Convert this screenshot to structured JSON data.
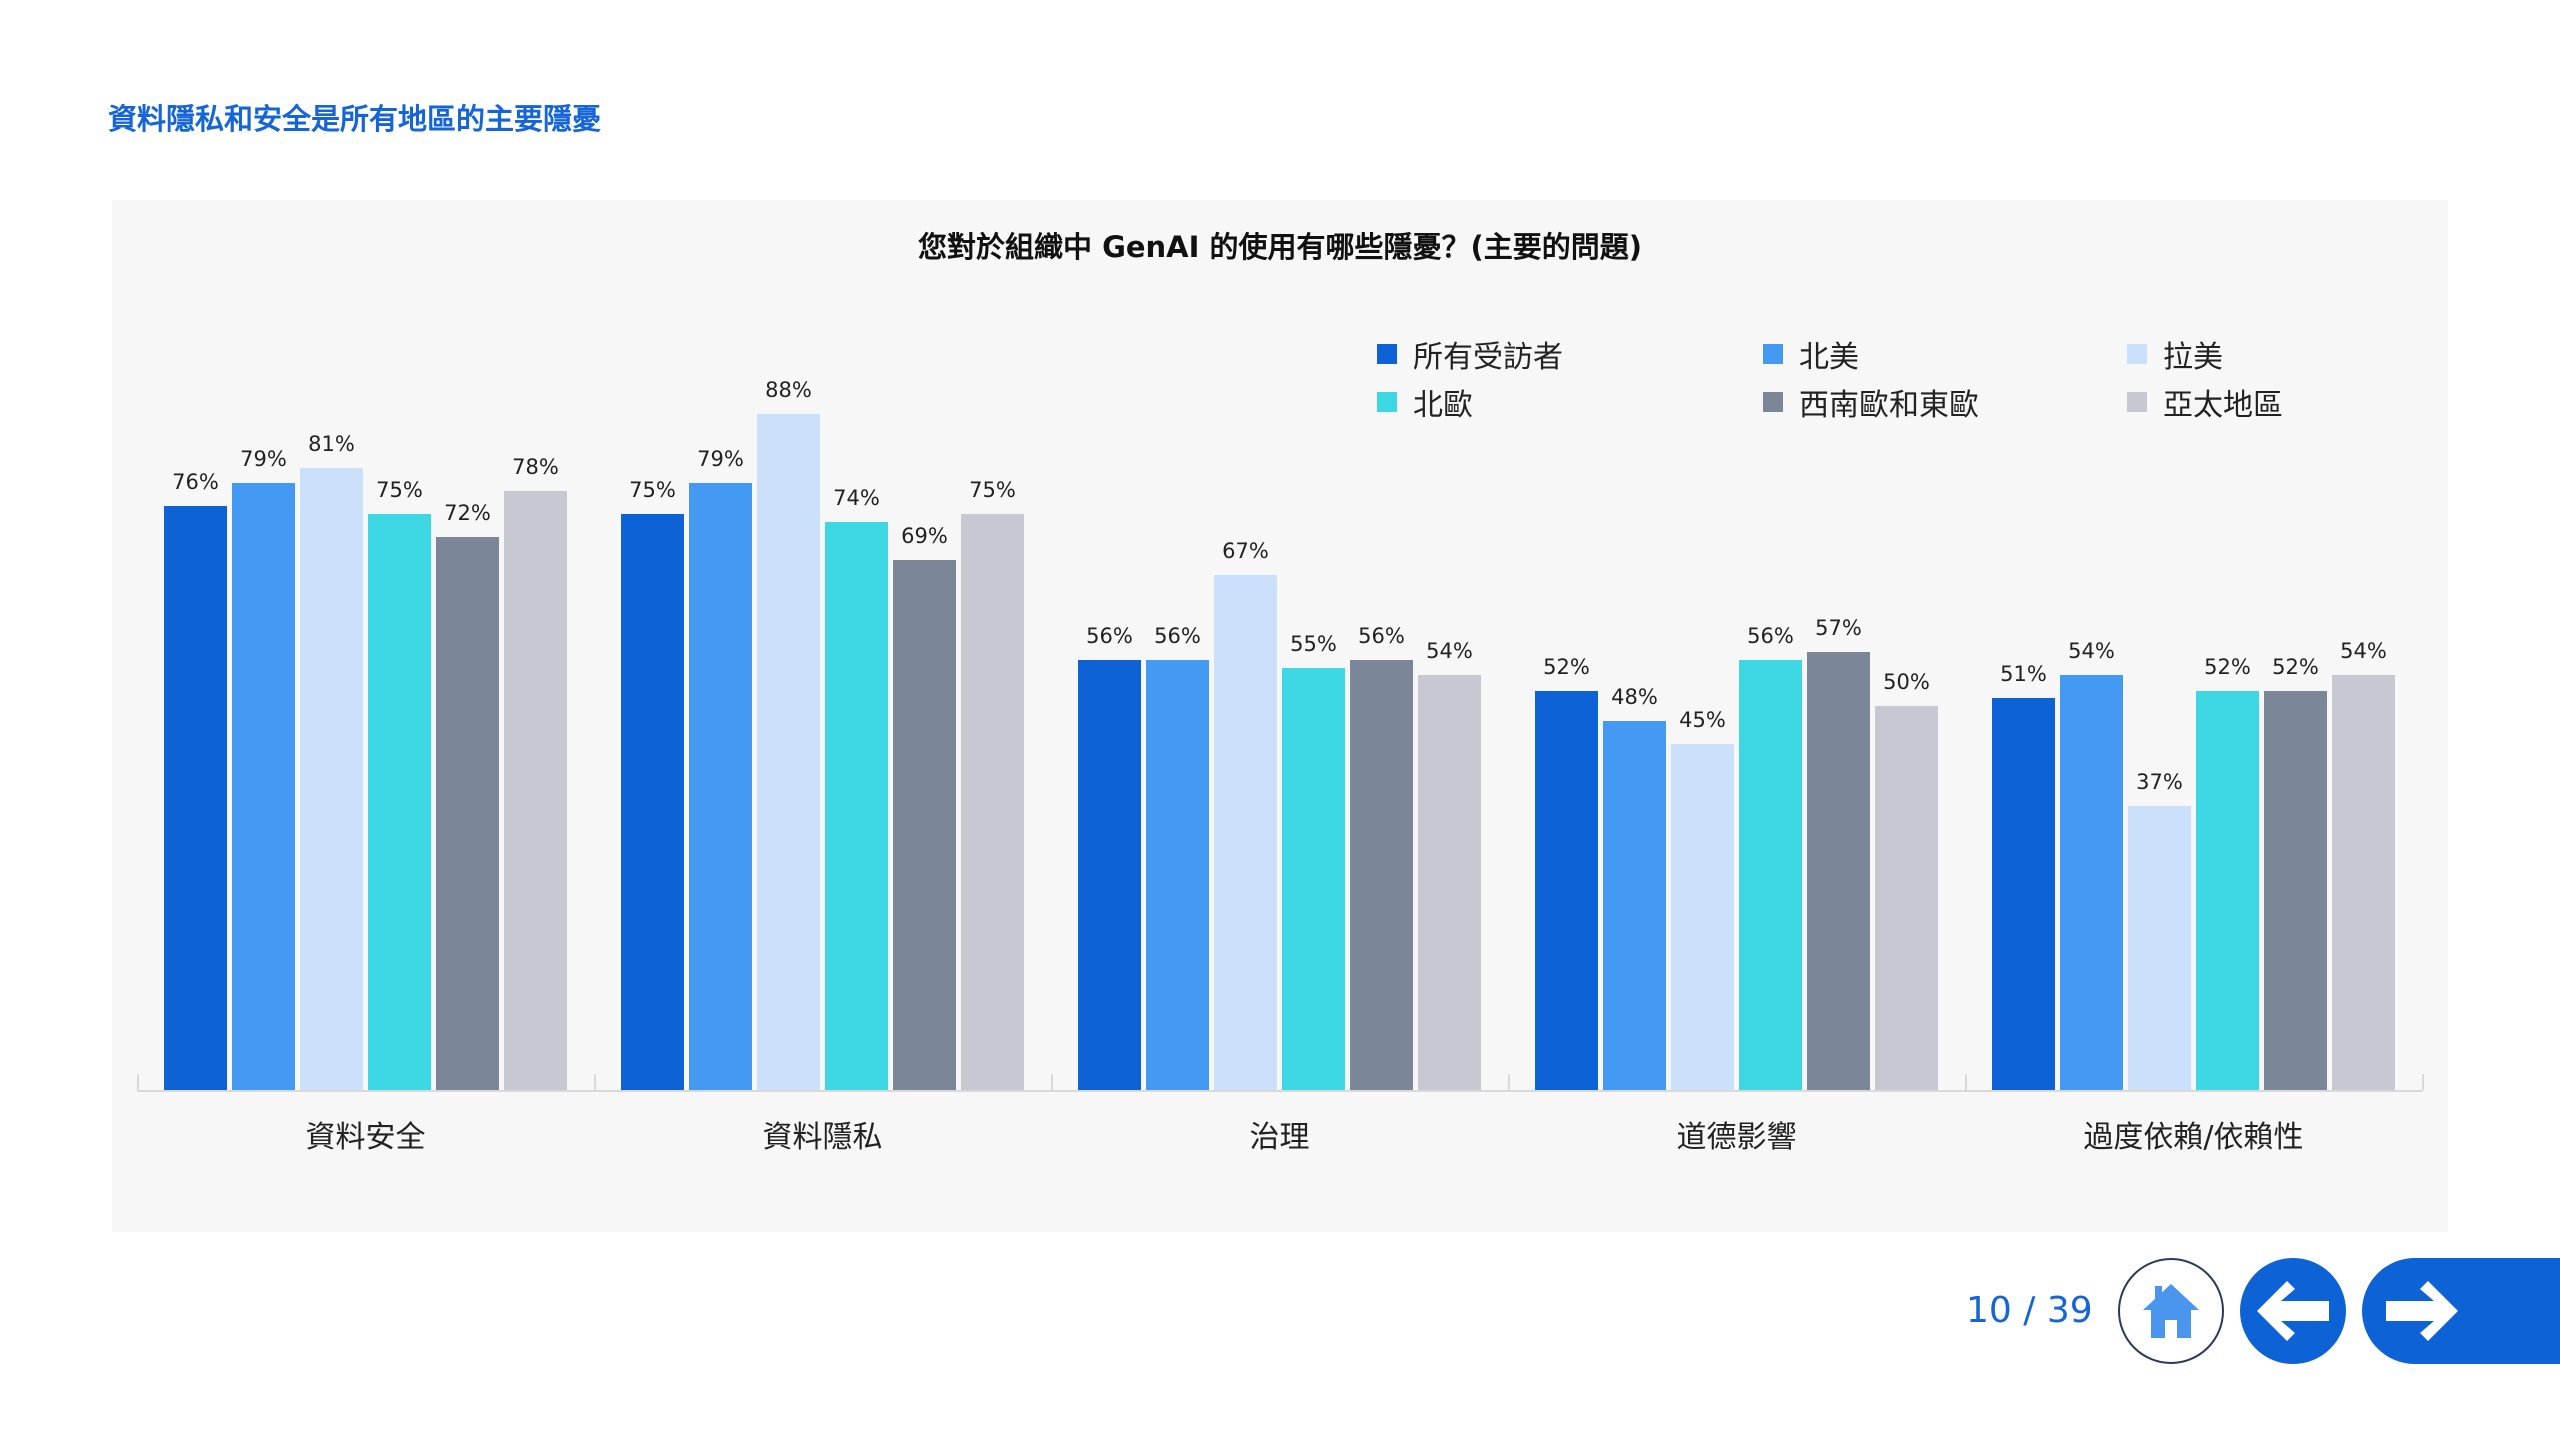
{
  "page": {
    "title": "資料隱私和安全是所有地區的主要隱憂"
  },
  "colors": {
    "title": "#1565d8",
    "panel_bg": "#f7f7f7",
    "nav_blue": "#0d63d6",
    "home_icon": "#4a95ee"
  },
  "legend": [
    {
      "label": "所有受訪者",
      "color": "#0d63d6"
    },
    {
      "label": "北美",
      "color": "#4499f2"
    },
    {
      "label": "拉美",
      "color": "#cbe0fb"
    },
    {
      "label": "北歐",
      "color": "#3dd8e4"
    },
    {
      "label": "西南歐和東歐",
      "color": "#7b8699"
    },
    {
      "label": "亞太地區",
      "color": "#c8c8d2"
    }
  ],
  "chart_data": {
    "type": "bar",
    "title": "您對於組織中 GenAI 的使用有哪些隱憂？(主要的問題)",
    "xlabel": "",
    "ylabel": "",
    "ylim": [
      0,
      100
    ],
    "grid": false,
    "legend_position": "top-right",
    "value_format": "percent",
    "categories": [
      "資料安全",
      "資料隱私",
      "治理",
      "道德影響",
      "過度依賴/依賴性"
    ],
    "series": [
      {
        "name": "所有受訪者",
        "color": "#0d63d6",
        "values": [
          76,
          75,
          56,
          52,
          51
        ]
      },
      {
        "name": "北美",
        "color": "#4499f2",
        "values": [
          79,
          79,
          56,
          48,
          54
        ]
      },
      {
        "name": "拉美",
        "color": "#cbe0fb",
        "values": [
          81,
          88,
          67,
          45,
          37
        ]
      },
      {
        "name": "北歐",
        "color": "#3dd8e4",
        "values": [
          75,
          74,
          55,
          56,
          52
        ]
      },
      {
        "name": "西南歐和東歐",
        "color": "#7b8699",
        "values": [
          72,
          69,
          56,
          57,
          52
        ]
      },
      {
        "name": "亞太地區",
        "color": "#c8c8d2",
        "values": [
          78,
          75,
          54,
          50,
          54
        ]
      }
    ]
  },
  "footer": {
    "page_counter": "10 / 39",
    "home_label": "home",
    "back_label": "previous",
    "next_label": "next"
  }
}
